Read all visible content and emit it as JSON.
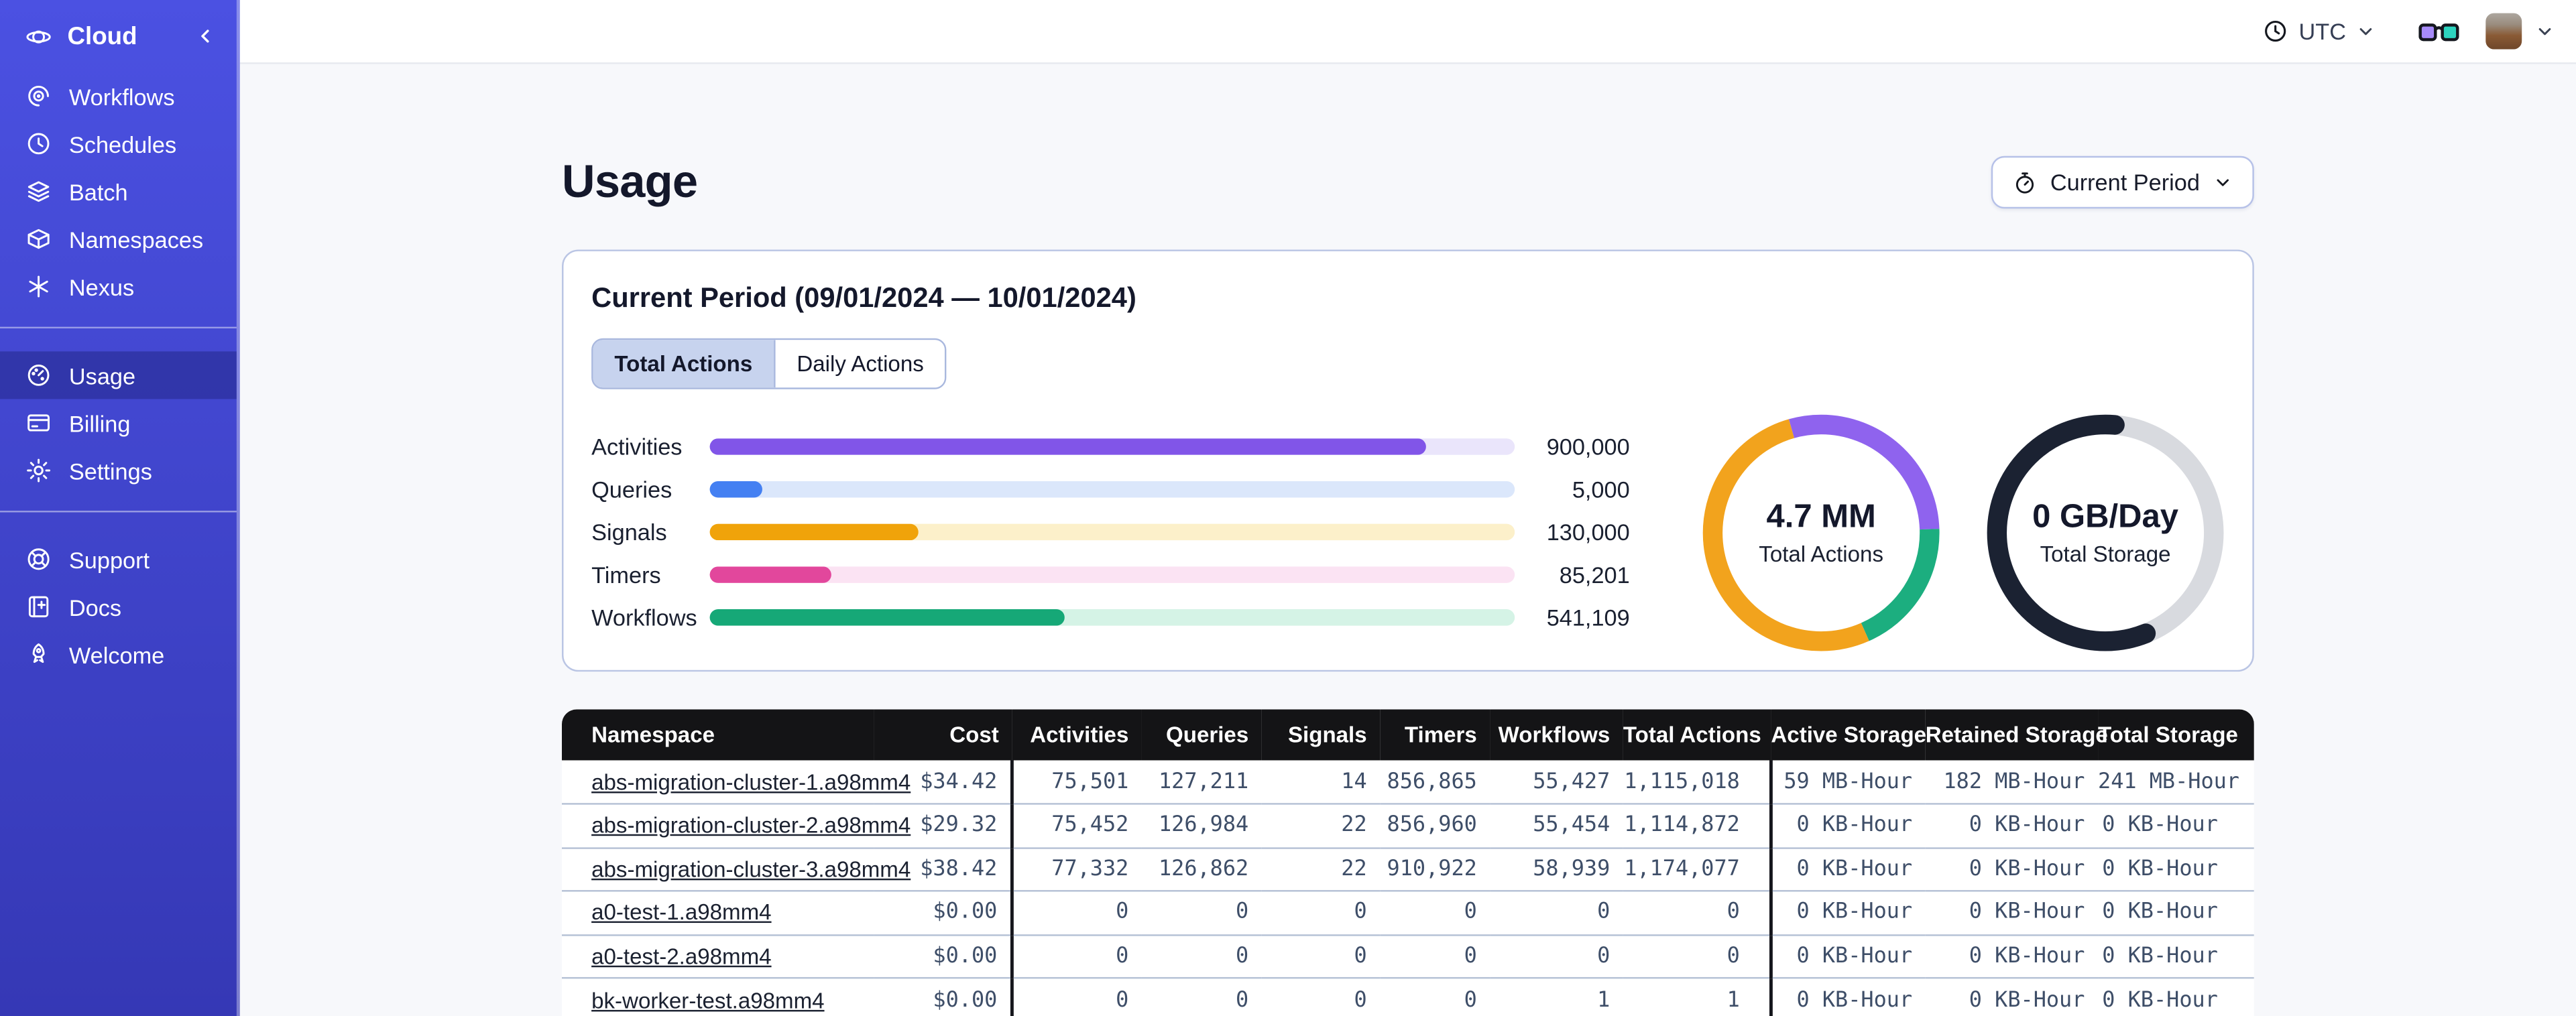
{
  "sidebar": {
    "brand": {
      "label": "Cloud",
      "icon": "temporal-logo"
    },
    "sections": [
      {
        "items": [
          {
            "icon": "workflows",
            "label": "Workflows"
          },
          {
            "icon": "schedules",
            "label": "Schedules"
          },
          {
            "icon": "batch",
            "label": "Batch"
          },
          {
            "icon": "namespaces",
            "label": "Namespaces"
          },
          {
            "icon": "nexus",
            "label": "Nexus"
          }
        ]
      },
      {
        "items": [
          {
            "icon": "usage",
            "label": "Usage",
            "active": true
          },
          {
            "icon": "billing",
            "label": "Billing"
          },
          {
            "icon": "settings",
            "label": "Settings"
          }
        ]
      },
      {
        "items": [
          {
            "icon": "support",
            "label": "Support"
          },
          {
            "icon": "docs",
            "label": "Docs"
          },
          {
            "icon": "welcome",
            "label": "Welcome"
          }
        ]
      }
    ]
  },
  "topbar": {
    "timezone": {
      "label": "UTC",
      "icon": "clock-icon",
      "chevron": "chevron-down-icon"
    },
    "glasses_icon": "glasses-icon",
    "account": {
      "avatar": "avatar",
      "chevron": "chevron-down-icon"
    }
  },
  "page": {
    "title": "Usage",
    "period_selector": {
      "label": "Current Period",
      "icon": "stopwatch-icon"
    }
  },
  "summary_card": {
    "title": "Current Period (09/01/2024 — 10/01/2024)",
    "tabs": [
      {
        "label": "Total Actions",
        "active": true
      },
      {
        "label": "Daily Actions",
        "active": false
      }
    ],
    "bars": [
      {
        "label": "Activities",
        "value": "900,000",
        "pct": 89,
        "color": "#8155E8",
        "track": "#EAE5FB"
      },
      {
        "label": "Queries",
        "value": "5,000",
        "pct": 6.5,
        "color": "#4480F2",
        "track": "#DBE7FB"
      },
      {
        "label": "Signals",
        "value": "130,000",
        "pct": 26,
        "color": "#F0A30A",
        "track": "#FCF0CA"
      },
      {
        "label": "Timers",
        "value": "85,201",
        "pct": 15,
        "color": "#E2479C",
        "track": "#FBE3F3"
      },
      {
        "label": "Workflows",
        "value": "541,109",
        "pct": 44,
        "color": "#16A877",
        "track": "#D5F3E6"
      }
    ],
    "donuts": [
      {
        "value": "4.7 MM",
        "label": "Total Actions",
        "cap": "butt",
        "segments": [
          {
            "color": "#8F63EE",
            "start": -16,
            "sweep": 104
          },
          {
            "color": "#1CAE7F",
            "start": 88,
            "sweep": 68
          },
          {
            "color": "#F2A31D",
            "start": 156,
            "sweep": 188
          }
        ]
      },
      {
        "value": "0 GB/Day",
        "label": "Total Storage",
        "cap": "round",
        "ring": "#D8DADF",
        "segments": [
          {
            "color": "#1B2232",
            "start": 158,
            "sweep": 207
          }
        ]
      }
    ]
  },
  "table": {
    "headers": [
      "Namespace",
      "Cost",
      "Activities",
      "Queries",
      "Signals",
      "Timers",
      "Workflows",
      "Total Actions",
      "Active Storage",
      "Retained Storage",
      "Total Storage"
    ],
    "rows": [
      [
        "abs-migration-cluster-1.a98mm4",
        "$34.42",
        "75,501",
        "127,211",
        "14",
        "856,865",
        "55,427",
        "1,115,018",
        "59 MB-Hour",
        "182 MB-Hour",
        "241 MB-Hour"
      ],
      [
        "abs-migration-cluster-2.a98mm4",
        "$29.32",
        "75,452",
        "126,984",
        "22",
        "856,960",
        "55,454",
        "1,114,872",
        "0 KB-Hour",
        "0 KB-Hour",
        "0 KB-Hour"
      ],
      [
        "abs-migration-cluster-3.a98mm4",
        "$38.42",
        "77,332",
        "126,862",
        "22",
        "910,922",
        "58,939",
        "1,174,077",
        "0 KB-Hour",
        "0 KB-Hour",
        "0 KB-Hour"
      ],
      [
        "a0-test-1.a98mm4",
        "$0.00",
        "0",
        "0",
        "0",
        "0",
        "0",
        "0",
        "0 KB-Hour",
        "0 KB-Hour",
        "0 KB-Hour"
      ],
      [
        "a0-test-2.a98mm4",
        "$0.00",
        "0",
        "0",
        "0",
        "0",
        "0",
        "0",
        "0 KB-Hour",
        "0 KB-Hour",
        "0 KB-Hour"
      ],
      [
        "bk-worker-test.a98mm4",
        "$0.00",
        "0",
        "0",
        "0",
        "0",
        "1",
        "1",
        "0 KB-Hour",
        "0 KB-Hour",
        "0 KB-Hour"
      ]
    ]
  },
  "colors": {
    "sidebar_top": "#4B51E2",
    "sidebar_bottom": "#3538B5",
    "page_bg": "#F7F8FB",
    "table_header_bg": "#141416",
    "card_border": "#BAC5E4",
    "tab_active_bg": "#C7D3EE",
    "glasses_left_lens": "#A78BFA",
    "glasses_right_lens": "#2DD4BF"
  }
}
